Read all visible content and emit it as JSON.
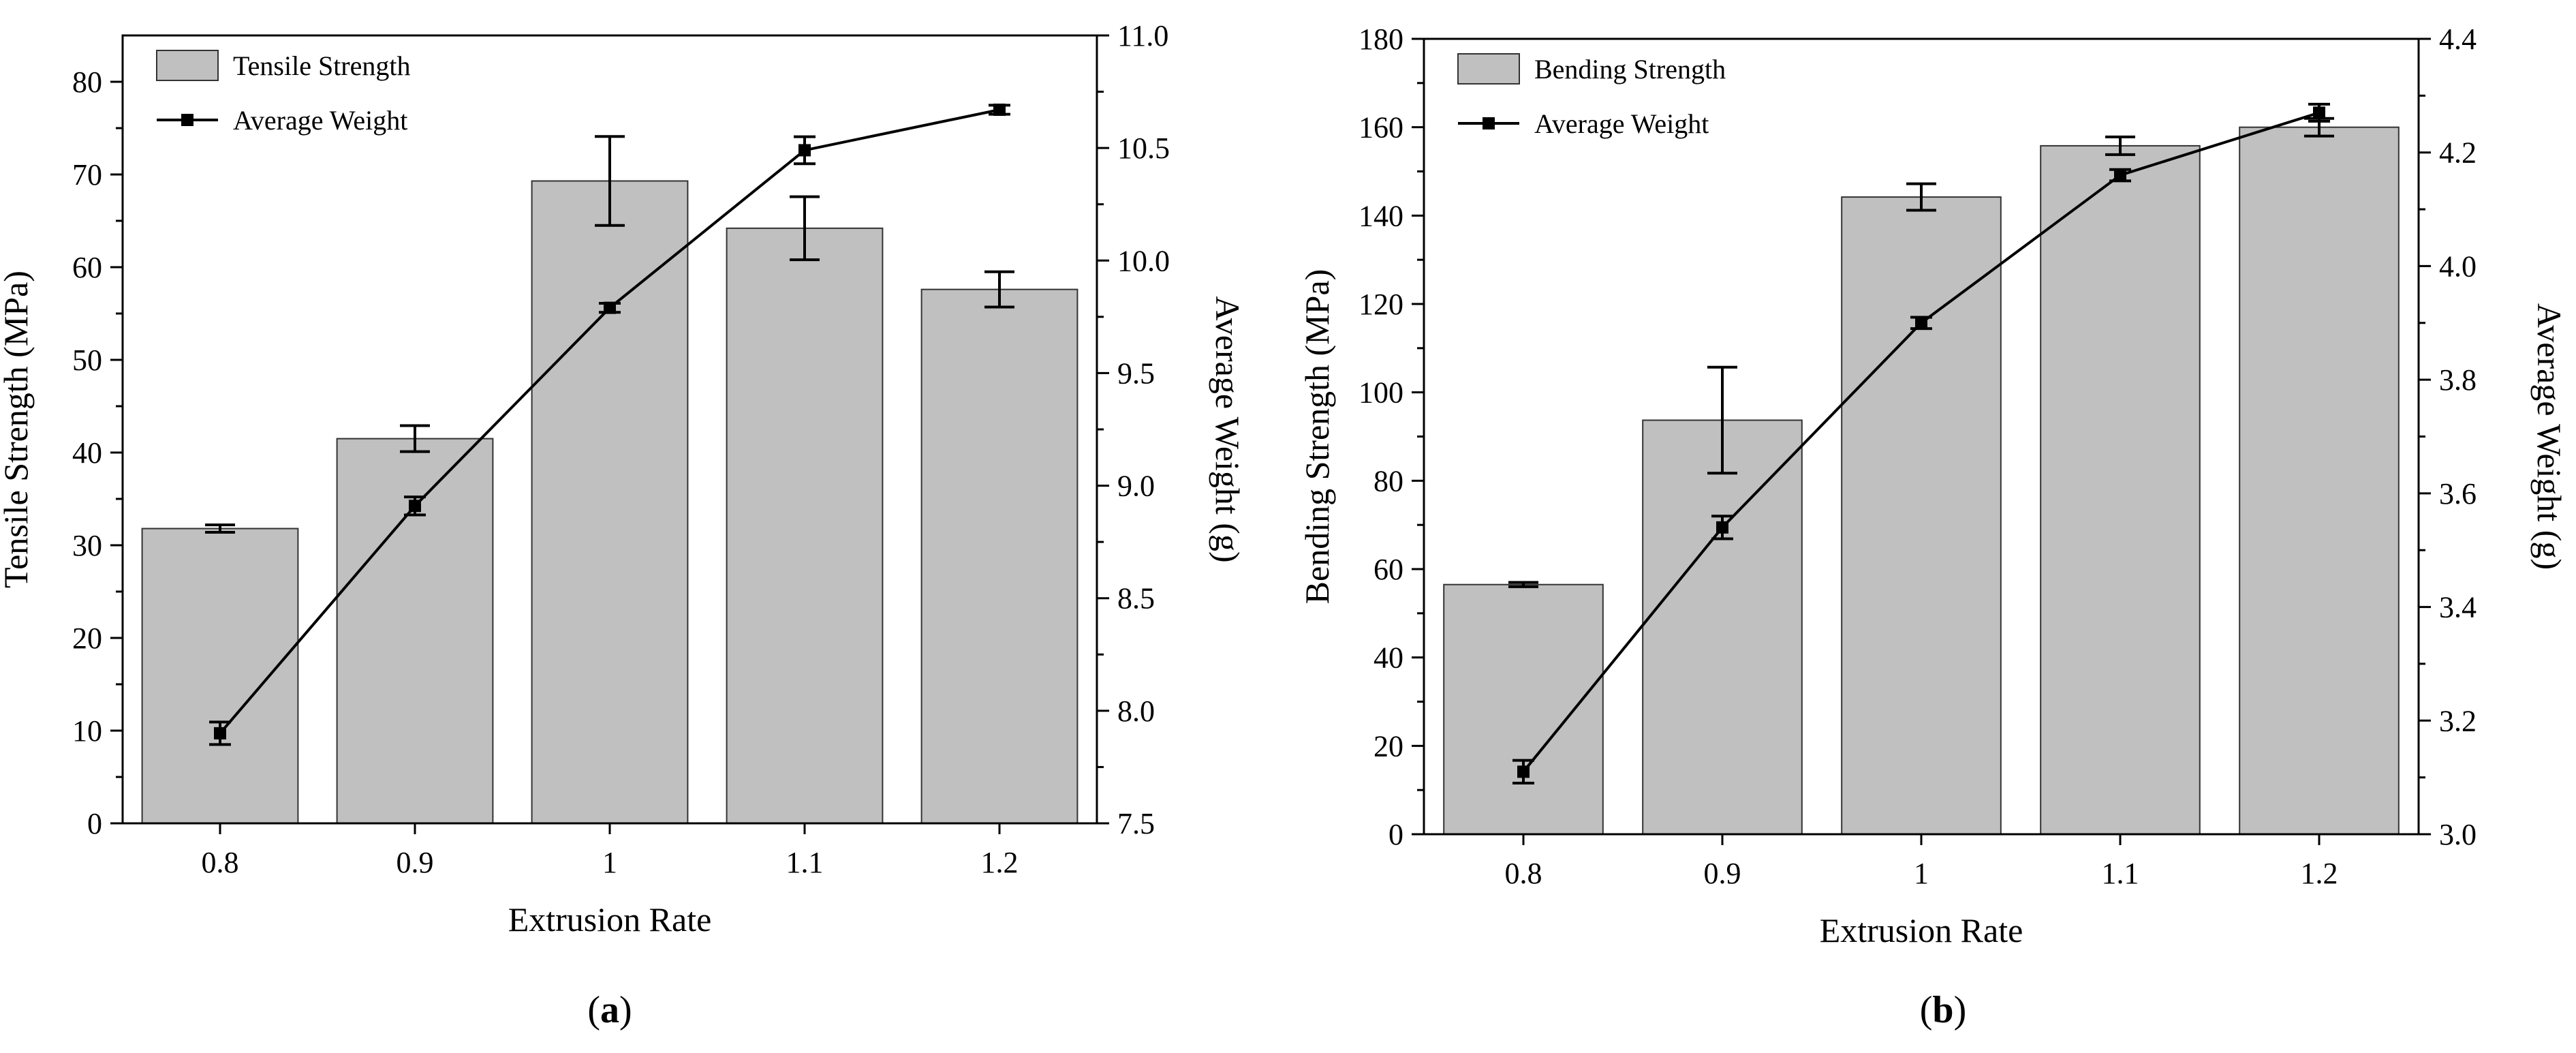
{
  "chart_data": [
    {
      "type": "bar",
      "panel_label": "(a)",
      "categories": [
        "0.8",
        "0.9",
        "1",
        "1.1",
        "1.2"
      ],
      "xlabel": "Extrusion Rate",
      "ylabel": "Tensile Strength (MPa)",
      "ylim": [
        0,
        85
      ],
      "yticks": [
        "0",
        "10",
        "20",
        "30",
        "40",
        "50",
        "60",
        "70",
        "80"
      ],
      "y2label": "Average Weight (g)",
      "y2lim": [
        7.5,
        11.0
      ],
      "y2ticks": [
        "7.5",
        "8.0",
        "8.5",
        "9.0",
        "9.5",
        "10.0",
        "10.5",
        "11.0"
      ],
      "bar_series": {
        "name": "Tensile Strength",
        "values": [
          31.8,
          41.5,
          69.3,
          64.2,
          57.6
        ],
        "errors": [
          0.4,
          1.4,
          4.8,
          3.4,
          1.9
        ],
        "color": "#c0c0c0"
      },
      "line_series": {
        "name": "Average Weight",
        "axis": "right",
        "values": [
          7.9,
          8.91,
          9.79,
          10.49,
          10.67
        ],
        "errors": [
          0.05,
          0.04,
          0.02,
          0.06,
          0.02
        ],
        "color": "#000000"
      },
      "legend_position": "top-left",
      "grid": false
    },
    {
      "type": "bar",
      "panel_label": "(b)",
      "categories": [
        "0.8",
        "0.9",
        "1",
        "1.1",
        "1.2"
      ],
      "xlabel": "Extrusion Rate",
      "ylabel": "Bending Strength (MPa)",
      "ylim": [
        0,
        180
      ],
      "yticks": [
        "0",
        "20",
        "40",
        "60",
        "80",
        "100",
        "120",
        "140",
        "160",
        "180"
      ],
      "y2label": "Average Weight (g)",
      "y2lim": [
        3.0,
        4.4
      ],
      "y2ticks": [
        "3.0",
        "3.2",
        "3.4",
        "3.6",
        "3.8",
        "4.0",
        "4.2",
        "4.4"
      ],
      "bar_series": {
        "name": "Bending Strength",
        "values": [
          56.5,
          93.7,
          144.2,
          155.8,
          160.0
        ],
        "errors": [
          0.5,
          12.0,
          3.0,
          2.0,
          2.0
        ],
        "color": "#c0c0c0"
      },
      "line_series": {
        "name": "Average Weight",
        "axis": "right",
        "values": [
          3.11,
          3.54,
          3.9,
          4.16,
          4.27
        ],
        "errors": [
          0.02,
          0.02,
          0.01,
          0.01,
          0.015
        ],
        "color": "#000000"
      },
      "legend_position": "top-left",
      "grid": false
    }
  ]
}
